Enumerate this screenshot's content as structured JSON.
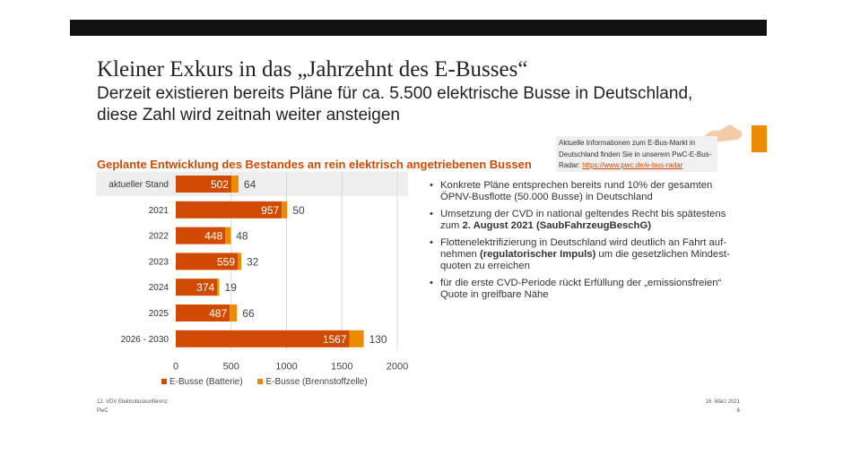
{
  "title": "Kleiner Exkurs in das „Jahrzehnt des E-Busses“",
  "subtitle_lines": [
    "Derzeit existieren bereits Pläne für ca. 5.500 elektrische Busse in Deutschland,",
    "diese Zahl wird zeitnah weiter ansteigen"
  ],
  "info": {
    "text": "Aktuelle Informationen zum E-Bus-Markt in Deutschland finden Sie in unserem PwC-E-Bus-Radar: ",
    "link": "https://www.pwc.de/e-bus-radar"
  },
  "bullets": [
    {
      "text": "Konkrete Pläne entsprechen bereits rund 10% der gesamten ÖPNV-Busflotte (50.000 Busse) in Deutschland",
      "bold": "",
      "after": ""
    },
    {
      "text": "Umsetzung der CVD in national geltendes Recht bis spätestens zum ",
      "bold": "2. August 2021 (SaubFahrzeugBeschG)",
      "after": ""
    },
    {
      "text": "Flottenelektrifizierung in Deutschland wird deutlich an Fahrt auf-nehmen ",
      "bold": "(regulatorischer Impuls)",
      "after": " um die gesetzlichen Mindest-quoten zu erreichen"
    },
    {
      "text": "für die erste CVD-Periode rückt Erfüllung der „emissionsfreien“ Quote in greifbare Nähe",
      "bold": "",
      "after": ""
    }
  ],
  "footer": {
    "left1": "12. VDV Elektrobuskonferenz",
    "left2": "PwC",
    "right1": "16. März 2021",
    "right2": "6"
  },
  "colors": {
    "battery": "#d04a02",
    "fuelcell": "#eb8c00"
  },
  "chart_data": {
    "type": "bar",
    "orientation": "horizontal-stacked",
    "title": "Geplante Entwicklung des Bestandes an rein elektrisch angetriebenen Bussen",
    "categories": [
      "aktueller Stand",
      "2021",
      "2022",
      "2023",
      "2024",
      "2025",
      "2026 - 2030"
    ],
    "series": [
      {
        "name": "E-Busse (Batterie)",
        "values": [
          502,
          957,
          448,
          559,
          374,
          487,
          1567
        ]
      },
      {
        "name": "E-Busse (Brennstoffzelle)",
        "values": [
          64,
          50,
          48,
          32,
          19,
          66,
          130
        ]
      }
    ],
    "xlim": [
      0,
      2000
    ],
    "xticks": [
      0,
      500,
      1000,
      1500,
      2000
    ],
    "grid": true,
    "highlighted_category": "aktueller Stand",
    "legend": "bottom"
  }
}
